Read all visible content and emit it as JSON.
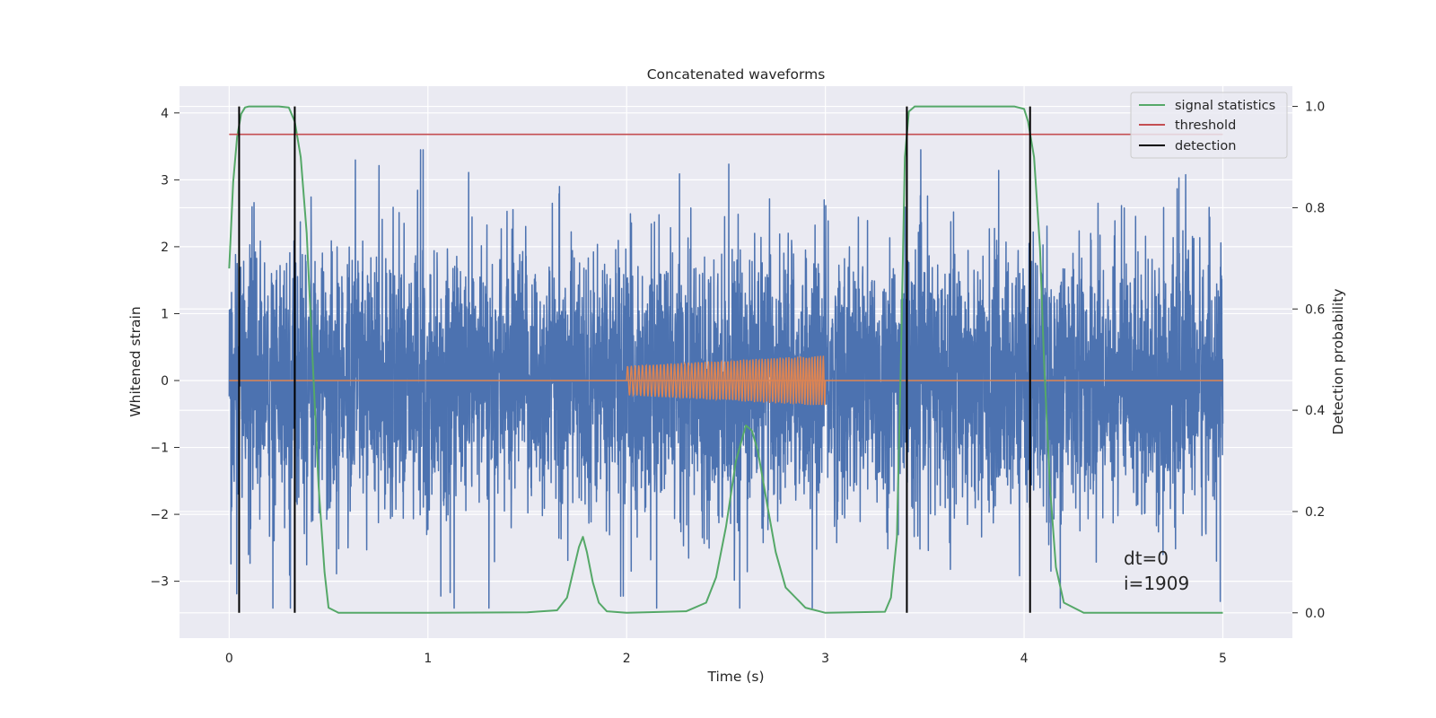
{
  "chart_data": {
    "type": "line",
    "title": "Concatenated waveforms",
    "xlabel": "Time (s)",
    "ylabel_left": "Whitened strain",
    "ylabel_right": "Detection probability",
    "xlim": [
      -0.25,
      5.35
    ],
    "ylim_left": [
      -3.85,
      4.4
    ],
    "ylim_right": [
      -0.05,
      1.04
    ],
    "x_ticks": [
      0,
      1,
      2,
      3,
      4,
      5
    ],
    "y_ticks_left": [
      -3,
      -2,
      -1,
      0,
      1,
      2,
      3,
      4
    ],
    "y_ticks_right": [
      0.0,
      0.2,
      0.4,
      0.6,
      0.8,
      1.0
    ],
    "x_tick_labels": [
      "0",
      "1",
      "2",
      "3",
      "4",
      "5"
    ],
    "y_tick_labels_left": [
      "−3",
      "−2",
      "−1",
      "0",
      "1",
      "2",
      "3",
      "4"
    ],
    "y_tick_labels_right": [
      "0.0",
      "0.2",
      "0.4",
      "0.6",
      "0.8",
      "1.0"
    ],
    "grid": true,
    "legend_position": "top-right",
    "series": [
      {
        "name": "",
        "axis": "left",
        "color": "#4c72b0",
        "kind": "noise",
        "x_range": [
          0,
          5
        ],
        "amplitude_range": [
          -3.4,
          3.45
        ]
      },
      {
        "name": "",
        "axis": "left",
        "color": "#dd8452",
        "kind": "chirp",
        "x_range": [
          2,
          3
        ],
        "amplitude_start": 0.22,
        "amplitude_end": 0.38
      },
      {
        "name": "signal statistics",
        "axis": "right",
        "color": "#55a868",
        "x": [
          0,
          0.02,
          0.04,
          0.06,
          0.08,
          0.1,
          0.15,
          0.2,
          0.25,
          0.3,
          0.33,
          0.36,
          0.39,
          0.42,
          0.45,
          0.48,
          0.5,
          0.55,
          1.0,
          1.5,
          1.65,
          1.7,
          1.73,
          1.76,
          1.78,
          1.8,
          1.83,
          1.86,
          1.9,
          2.0,
          2.3,
          2.4,
          2.45,
          2.5,
          2.55,
          2.6,
          2.63,
          2.66,
          2.7,
          2.75,
          2.8,
          2.9,
          3.0,
          3.3,
          3.33,
          3.36,
          3.38,
          3.4,
          3.42,
          3.45,
          3.5,
          3.6,
          3.8,
          3.95,
          4.0,
          4.02,
          4.05,
          4.08,
          4.1,
          4.13,
          4.16,
          4.2,
          4.3,
          5.0
        ],
        "y": [
          0.68,
          0.85,
          0.94,
          0.985,
          0.998,
          1.0,
          1.0,
          1.0,
          1.0,
          0.998,
          0.97,
          0.9,
          0.75,
          0.5,
          0.25,
          0.08,
          0.01,
          0.0,
          0.0,
          0.001,
          0.005,
          0.03,
          0.08,
          0.13,
          0.15,
          0.12,
          0.06,
          0.02,
          0.003,
          0.0,
          0.003,
          0.02,
          0.07,
          0.17,
          0.3,
          0.37,
          0.36,
          0.32,
          0.23,
          0.12,
          0.05,
          0.01,
          0.0,
          0.002,
          0.03,
          0.15,
          0.5,
          0.9,
          0.99,
          1.0,
          1.0,
          1.0,
          1.0,
          1.0,
          0.995,
          0.97,
          0.9,
          0.72,
          0.5,
          0.25,
          0.09,
          0.02,
          0.0,
          0.0
        ]
      },
      {
        "name": "threshold",
        "axis": "left",
        "color": "#c44e52",
        "x": [
          0,
          5
        ],
        "y": [
          3.68,
          3.68
        ]
      },
      {
        "name": "detection",
        "axis": "right",
        "color": "#000000",
        "kind": "vlines",
        "x": [
          0.05,
          0.33,
          3.41,
          4.03
        ],
        "y_range": [
          0.0,
          1.0
        ]
      }
    ],
    "zero_line": {
      "axis": "left",
      "y": 0,
      "x_range": [
        0,
        5
      ],
      "color": "#dd8452"
    },
    "annotations": [
      {
        "text": "dt=0",
        "x": 4.5,
        "y": -2.7
      },
      {
        "text": "i=1909",
        "x": 4.5,
        "y": -3.1
      }
    ]
  }
}
